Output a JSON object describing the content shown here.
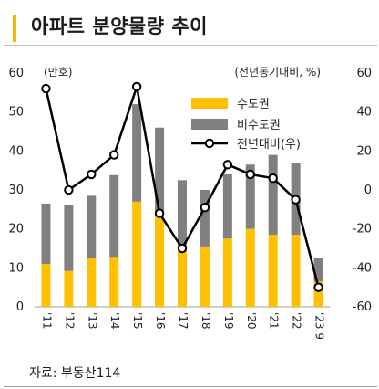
{
  "header": {
    "title": "아파트 분양물량 추이"
  },
  "source": "자료: 부동산114",
  "colors": {
    "metro": "#FFC000",
    "non_metro": "#808080",
    "line": "#000000",
    "accent": "#F2B705"
  },
  "chart_data": {
    "type": "bar",
    "stacked": true,
    "categories": [
      "'11",
      "'12",
      "'13",
      "'14",
      "'15",
      "'16",
      "'17",
      "'18",
      "'19",
      "'20",
      "'21",
      "'22",
      "'23.9"
    ],
    "series": [
      {
        "name": "수도권",
        "values": [
          11,
          9.2,
          12.5,
          12.8,
          27,
          24,
          15,
          15.5,
          17.5,
          20,
          18.5,
          18.5,
          6.5
        ]
      },
      {
        "name": "비수도권",
        "values": [
          15.5,
          17,
          16,
          21,
          25,
          22,
          17.5,
          14.5,
          16.5,
          16.5,
          20.5,
          18.5,
          6
        ]
      }
    ],
    "line_series": {
      "name": "전년대비(우)",
      "values": [
        52,
        0,
        8,
        18,
        53,
        -12,
        -30,
        -9,
        13,
        8,
        6,
        -5,
        -50
      ]
    },
    "y_left": {
      "label": "(만호)",
      "min": 0,
      "max": 60,
      "ticks": [
        0,
        10,
        20,
        30,
        40,
        50,
        60
      ]
    },
    "y_right": {
      "label": "(전년동기대비, %)",
      "min": -60,
      "max": 60,
      "ticks": [
        -60,
        -40,
        -20,
        0,
        20,
        40,
        60
      ]
    },
    "legend_position": "upper-right",
    "grid": false
  }
}
